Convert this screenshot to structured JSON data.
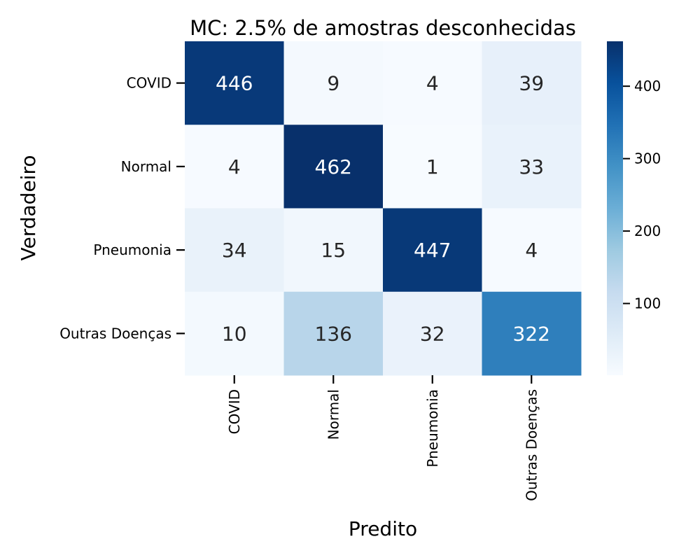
{
  "chart_data": {
    "type": "heatmap",
    "title": "MC: 2.5% de amostras desconhecidas",
    "xlabel": "Predito",
    "ylabel": "Verdadeiro",
    "x_categories": [
      "COVID",
      "Normal",
      "Pneumonia",
      "Outras Doenças"
    ],
    "y_categories": [
      "COVID",
      "Normal",
      "Pneumonia",
      "Outras Doenças"
    ],
    "values": [
      [
        446,
        9,
        4,
        39
      ],
      [
        4,
        462,
        1,
        33
      ],
      [
        34,
        15,
        447,
        4
      ],
      [
        10,
        136,
        32,
        322
      ]
    ],
    "colorbar": {
      "range": [
        1,
        462
      ],
      "ticks": [
        100,
        200,
        300,
        400
      ],
      "colormap": "Blues"
    },
    "grid": false
  }
}
